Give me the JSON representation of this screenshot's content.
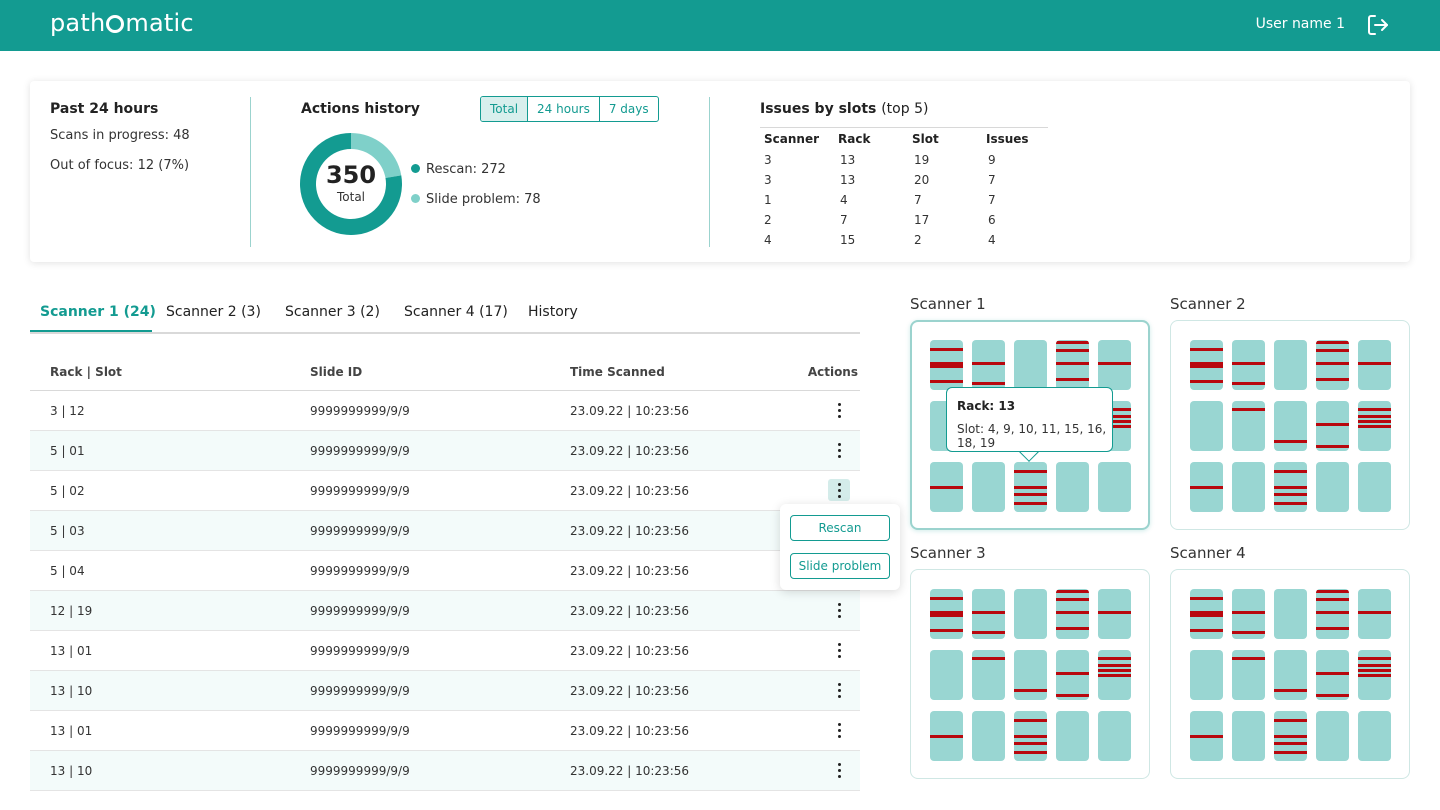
{
  "header": {
    "logo_left": "path",
    "logo_right": "matic",
    "username": "User name 1"
  },
  "summary": {
    "past": {
      "title": "Past 24 hours",
      "scans_label": "Scans in progress:",
      "scans_value": "48",
      "focus_label": "Out of focus:",
      "focus_value": "12 (7%)"
    },
    "actions": {
      "title": "Actions history",
      "tabs": [
        "Total",
        "24 hours",
        "7 days"
      ],
      "total_value": "350",
      "total_label": "Total",
      "rescan_label": "Rescan: 272",
      "slide_label": "Slide problem: 78",
      "rescan": 272,
      "slide_problem": 78,
      "colors": {
        "rescan": "#139b91",
        "slide_problem": "#7fd0c9"
      }
    },
    "issues": {
      "title": "Issues by slots",
      "subtitle": "(top 5)",
      "headers": [
        "Scanner",
        "Rack",
        "Slot",
        "Issues"
      ],
      "rows": [
        [
          "3",
          "13",
          "19",
          "9"
        ],
        [
          "3",
          "13",
          "20",
          "7"
        ],
        [
          "1",
          "4",
          "7",
          "7"
        ],
        [
          "2",
          "7",
          "17",
          "6"
        ],
        [
          "4",
          "15",
          "2",
          "4"
        ]
      ]
    }
  },
  "scanner_tabs": [
    "Scanner 1 (24)",
    "Scanner 2 (3)",
    "Scanner 3 (2)",
    "Scanner 4 (17)",
    "History"
  ],
  "table": {
    "headers": [
      "Rack | Slot",
      "Slide ID",
      "Time Scanned",
      "Actions"
    ],
    "rows": [
      [
        "3 | 12",
        "9999999999/9/9",
        "23.09.22 | 10:23:56"
      ],
      [
        "5 | 01",
        "9999999999/9/9",
        "23.09.22 | 10:23:56"
      ],
      [
        "5 | 02",
        "9999999999/9/9",
        "23.09.22 | 10:23:56"
      ],
      [
        "5 | 03",
        "9999999999/9/9",
        "23.09.22 | 10:23:56"
      ],
      [
        "5 | 04",
        "9999999999/9/9",
        "23.09.22 | 10:23:56"
      ],
      [
        "12 | 19",
        "9999999999/9/9",
        "23.09.22 | 10:23:56"
      ],
      [
        "13 | 01",
        "9999999999/9/9",
        "23.09.22 | 10:23:56"
      ],
      [
        "13 | 10",
        "9999999999/9/9",
        "23.09.22 | 10:23:56"
      ],
      [
        "13 | 01",
        "9999999999/9/9",
        "23.09.22 | 10:23:56"
      ],
      [
        "13 | 10",
        "9999999999/9/9",
        "23.09.22 | 10:23:56"
      ]
    ]
  },
  "popover": {
    "rescan": "Rescan",
    "slide_problem": "Slide problem"
  },
  "panels": [
    "Scanner 1",
    "Scanner 2",
    "Scanner 3",
    "Scanner 4"
  ],
  "tooltip": {
    "rack": "Rack: 13",
    "slots": "Slot: 4, 9, 10, 11, 15, 16, 18, 19"
  },
  "colors": {
    "brand": "#139b91",
    "slot": "#99d6d2",
    "issue": "#b8080e"
  }
}
